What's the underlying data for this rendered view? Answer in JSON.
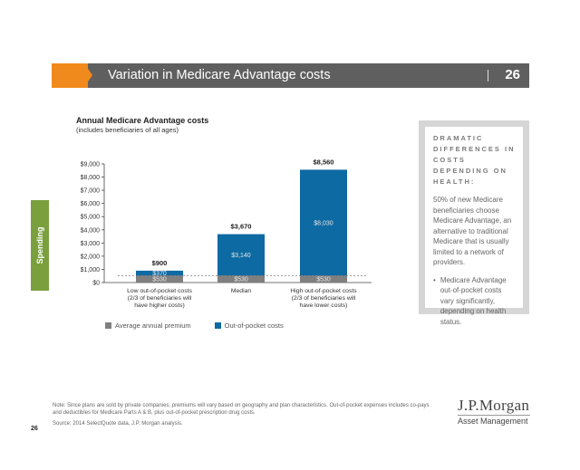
{
  "header": {
    "title": "Variation in Medicare Advantage costs",
    "page_number": "26"
  },
  "side_tab": "Spending",
  "chart_data": {
    "type": "bar",
    "stacked": true,
    "title": "Annual Medicare Advantage costs",
    "subtitle": "(includes beneficiaries of all ages)",
    "categories": [
      [
        "Low out-of-pocket costs",
        "(2/3 of beneficiaries will",
        "have higher costs)"
      ],
      [
        "Median"
      ],
      [
        "High out-of-pocket costs",
        "(2/3 of beneficiaries will",
        "have lower costs)"
      ]
    ],
    "series": [
      {
        "name": "Average annual premium",
        "values": [
          530,
          530,
          530
        ],
        "labels": [
          "$530",
          "$530",
          "$530"
        ],
        "color": "#7f7f7f"
      },
      {
        "name": "Out-of-pocket costs",
        "values": [
          370,
          3140,
          8030
        ],
        "labels": [
          "$370",
          "$3,140",
          "$8,030"
        ],
        "color": "#0e6aa3"
      }
    ],
    "totals": [
      "$900",
      "$3,670",
      "$8,560"
    ],
    "ylim": [
      0,
      9000
    ],
    "yticks": [
      0,
      1000,
      2000,
      3000,
      4000,
      5000,
      6000,
      7000,
      8000,
      9000
    ],
    "ytick_labels": [
      "$0",
      "$1,000",
      "$2,000",
      "$3,000",
      "$4,000",
      "$5,000",
      "$6,000",
      "$7,000",
      "$8,000",
      "$9,000"
    ],
    "reference_line": {
      "value": 530,
      "style": "dashed"
    },
    "grid": false,
    "legend_position": "bottom-left"
  },
  "panel": {
    "title": "DRAMATIC DIFFERENCES IN COSTS DEPENDING ON HEALTH:",
    "body": "50% of new Medicare beneficiaries choose Medicare Advantage, an alternative to traditional Medicare that is usually limited to a network of providers.",
    "bullet": "Medicare Advantage out-of-pocket costs vary significantly, depending on health status."
  },
  "footer": {
    "note": "Note: Since plans are sold by private companies, premiums will vary based on geography and plan characteristics. Out-of-pocket expenses includes co-pays and deductibles for Medicare Parts A & B, plus out-of-pocket prescription drug costs.",
    "source": "Source: 2014 SelectQuote data, J.P. Morgan analysis.",
    "page_number": "26"
  },
  "logo": {
    "line1": "J.P.Morgan",
    "line2": "Asset Management"
  }
}
